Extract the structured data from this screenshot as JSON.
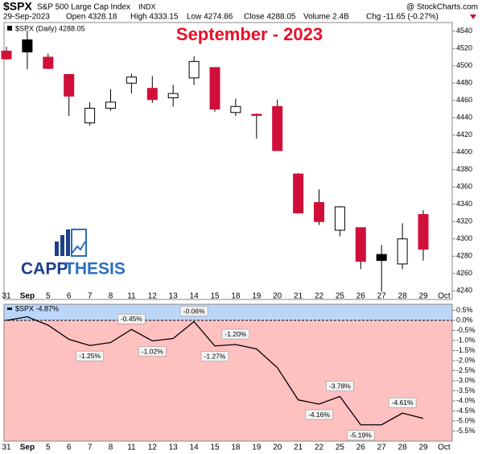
{
  "header": {
    "symbol": "$SPX",
    "name": "S&P 500 Large Cap Index",
    "exchange": "INDX",
    "source": "@ StockCharts.com",
    "date": "29-Sep-2023",
    "open": "Open 4328.18",
    "high": "High 4333.15",
    "low": "Low 4274.86",
    "close": "Close 4288.05",
    "volume": "Volume 2.4B",
    "change": "Chg -11.65 (-0.27%)"
  },
  "logo": [
    "CAPP",
    "THESIS"
  ],
  "chart_data": [
    {
      "type": "candlestick",
      "title": "September - 2023",
      "legend": "$SPX (Daily) 4288.05",
      "categories": [
        "31",
        "Sep",
        "5",
        "6",
        "7",
        "8",
        "11",
        "12",
        "13",
        "14",
        "15",
        "18",
        "19",
        "20",
        "21",
        "22",
        "25",
        "26",
        "27",
        "28",
        "29",
        "Oct"
      ],
      "open": [
        4517,
        4530,
        4510,
        4490,
        4434,
        4451,
        4480,
        4474,
        4463,
        4486,
        4498,
        4446,
        4444,
        4453,
        4375,
        4342,
        4310,
        4313,
        4282,
        4271,
        4328.18,
        null
      ],
      "high": [
        4522,
        4541,
        4514,
        4490,
        4458,
        4473,
        4491,
        4488,
        4478,
        4511,
        4498,
        4462,
        4445,
        4461,
        4376,
        4357,
        4338,
        4313,
        4293,
        4318,
        4333.15,
        null
      ],
      "low": [
        4507,
        4496,
        4496,
        4442,
        4431,
        4448,
        4468,
        4457,
        4453,
        4478,
        4447,
        4442,
        4416,
        4402,
        4329,
        4316,
        4303,
        4265,
        4239,
        4265,
        4274.86,
        null
      ],
      "close": [
        4508,
        4516,
        4497,
        4465,
        4451,
        4458,
        4487,
        4461,
        4468,
        4505,
        4450,
        4453,
        4444,
        4402,
        4330,
        4320,
        4337,
        4274,
        4275,
        4300,
        4288.05,
        null
      ],
      "colors": [
        "#d0103a",
        "#000000",
        "#d0103a",
        "#d0103a",
        "#ffffff",
        "#ffffff",
        "#ffffff",
        "#d0103a",
        "#ffffff",
        "#ffffff",
        "#d0103a",
        "#ffffff",
        "#d0103a",
        "#d0103a",
        "#d0103a",
        "#d0103a",
        "#ffffff",
        "#d0103a",
        "#000000",
        "#ffffff",
        "#d0103a",
        null
      ],
      "ylim": [
        4230,
        4550
      ],
      "yticks": [
        4240,
        4260,
        4280,
        4300,
        4320,
        4340,
        4360,
        4380,
        4400,
        4420,
        4440,
        4460,
        4480,
        4500,
        4520,
        4540
      ]
    },
    {
      "type": "line",
      "legend": "$SPX -4.87%",
      "color": "#000000",
      "categories": [
        "31",
        "Sep",
        "5",
        "6",
        "7",
        "8",
        "11",
        "12",
        "13",
        "14",
        "15",
        "18",
        "19",
        "20",
        "21",
        "22",
        "25",
        "26",
        "27",
        "28",
        "29",
        "Oct"
      ],
      "values": [
        0.0,
        0.18,
        -0.24,
        -0.94,
        -1.25,
        -1.1,
        -0.45,
        -1.02,
        -0.9,
        -0.06,
        -1.27,
        -1.2,
        -1.42,
        -2.35,
        -3.95,
        -4.16,
        -3.78,
        -5.19,
        -5.19,
        -4.61,
        -4.87,
        null
      ],
      "value_labels": [
        null,
        null,
        null,
        null,
        "-1.25%",
        null,
        "-0.45%",
        "-1.02%",
        null,
        "-0.06%",
        "-1.27%",
        "-1.20%",
        null,
        null,
        null,
        "-4.16%",
        "-3.78%",
        "-5.19%",
        null,
        "-4.61%",
        null,
        null
      ],
      "ylim": [
        0.8,
        -6.0
      ],
      "yticks": [
        {
          "value": 0.5,
          "label": "0.5%"
        },
        {
          "value": 0.0,
          "label": "0.0%"
        },
        {
          "value": -0.5,
          "label": "-0.5%"
        },
        {
          "value": -1.0,
          "label": "-1.0%"
        },
        {
          "value": -1.5,
          "label": "-1.5%"
        },
        {
          "value": -2.0,
          "label": "-2.0%"
        },
        {
          "value": -2.5,
          "label": "-2.5%"
        },
        {
          "value": -3.0,
          "label": "-3.0%"
        },
        {
          "value": -3.5,
          "label": "-3.5%"
        },
        {
          "value": -4.0,
          "label": "-4.0%"
        },
        {
          "value": -4.5,
          "label": "-4.5%"
        },
        {
          "value": -5.0,
          "label": "-5.0%"
        },
        {
          "value": -5.5,
          "label": "-5.5%"
        }
      ],
      "positive_fill": "#bcd6fa",
      "negative_fill": "#ffc0c0"
    }
  ]
}
